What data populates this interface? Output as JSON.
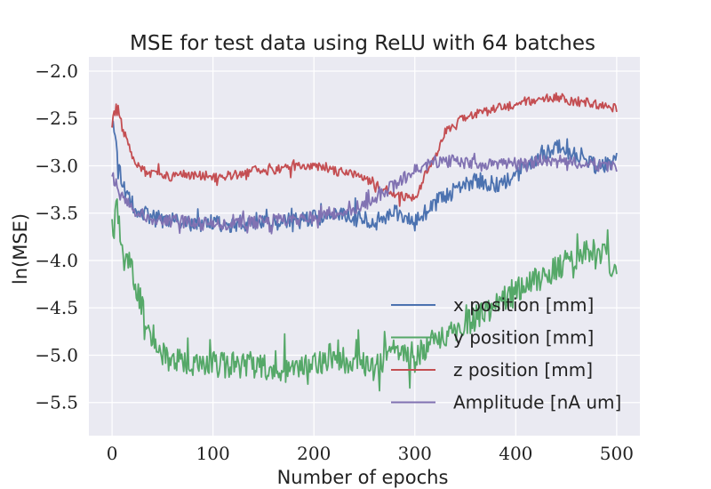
{
  "chart_data": {
    "type": "line",
    "title": "MSE for test data using ReLU with 64 batches",
    "xlabel": "Number of epochs",
    "ylabel": "ln(MSE)",
    "xlim": [
      -23,
      523
    ],
    "ylim": [
      -5.85,
      -1.85
    ],
    "xticks": [
      0,
      100,
      200,
      300,
      400,
      500
    ],
    "xtick_labels": [
      "0",
      "100",
      "200",
      "300",
      "400",
      "500"
    ],
    "yticks": [
      -5.5,
      -5.0,
      -4.5,
      -4.0,
      -3.5,
      -3.0,
      -2.5,
      -2.0
    ],
    "ytick_labels": [
      "−5.5",
      "−5.0",
      "−4.5",
      "−4.0",
      "−3.5",
      "−3.0",
      "−2.5",
      "−2.0"
    ],
    "grid": true,
    "legend_position": "lower-right",
    "series": [
      {
        "name": "x position [mm]",
        "color": "#4c72b0",
        "x": [
          0,
          10,
          20,
          30,
          40,
          60,
          80,
          100,
          120,
          140,
          160,
          180,
          200,
          220,
          240,
          260,
          280,
          300,
          320,
          340,
          360,
          380,
          400,
          420,
          440,
          460,
          480,
          500
        ],
        "y": [
          -2.55,
          -3.2,
          -3.4,
          -3.5,
          -3.55,
          -3.58,
          -3.62,
          -3.6,
          -3.62,
          -3.6,
          -3.6,
          -3.58,
          -3.55,
          -3.5,
          -3.55,
          -3.6,
          -3.5,
          -3.6,
          -3.4,
          -3.25,
          -3.15,
          -3.2,
          -3.1,
          -2.95,
          -2.8,
          -2.9,
          -3.0,
          -2.95
        ],
        "noise": 0.09
      },
      {
        "name": "y position [mm]",
        "color": "#55a868",
        "x": [
          0,
          5,
          10,
          20,
          30,
          40,
          50,
          60,
          80,
          100,
          120,
          140,
          160,
          180,
          200,
          220,
          240,
          260,
          280,
          300,
          320,
          340,
          360,
          380,
          400,
          420,
          440,
          460,
          480,
          500
        ],
        "y": [
          -3.85,
          -3.4,
          -3.95,
          -4.1,
          -4.5,
          -4.8,
          -5.0,
          -5.05,
          -5.1,
          -5.1,
          -5.1,
          -5.1,
          -5.15,
          -5.15,
          -5.1,
          -5.0,
          -5.1,
          -5.15,
          -4.9,
          -5.05,
          -4.8,
          -4.75,
          -4.6,
          -4.5,
          -4.3,
          -4.2,
          -4.1,
          -3.95,
          -3.85,
          -4.1
        ],
        "noise": 0.14
      },
      {
        "name": "z position [mm]",
        "color": "#c44e52",
        "x": [
          0,
          5,
          10,
          20,
          30,
          40,
          60,
          80,
          100,
          120,
          140,
          160,
          180,
          200,
          220,
          240,
          260,
          280,
          300,
          310,
          320,
          330,
          340,
          360,
          380,
          400,
          420,
          440,
          460,
          480,
          500
        ],
        "y": [
          -2.55,
          -2.35,
          -2.6,
          -2.9,
          -3.05,
          -3.1,
          -3.12,
          -3.1,
          -3.1,
          -3.1,
          -3.05,
          -3.05,
          -3.0,
          -3.0,
          -3.05,
          -3.1,
          -3.2,
          -3.3,
          -3.35,
          -3.1,
          -2.9,
          -2.65,
          -2.55,
          -2.45,
          -2.4,
          -2.35,
          -2.3,
          -2.28,
          -2.32,
          -2.35,
          -2.4
        ],
        "noise": 0.05
      },
      {
        "name": "Amplitude [nA um]",
        "color": "#8172b2",
        "x": [
          0,
          10,
          20,
          30,
          40,
          60,
          80,
          100,
          120,
          140,
          160,
          180,
          200,
          220,
          240,
          260,
          280,
          300,
          320,
          340,
          360,
          380,
          400,
          420,
          440,
          460,
          480,
          500
        ],
        "y": [
          -3.1,
          -3.35,
          -3.45,
          -3.5,
          -3.55,
          -3.58,
          -3.6,
          -3.62,
          -3.6,
          -3.6,
          -3.58,
          -3.57,
          -3.55,
          -3.5,
          -3.45,
          -3.35,
          -3.2,
          -3.05,
          -2.95,
          -2.95,
          -2.98,
          -3.0,
          -2.98,
          -2.95,
          -2.95,
          -2.97,
          -3.0,
          -3.02
        ],
        "noise": 0.07
      }
    ]
  }
}
